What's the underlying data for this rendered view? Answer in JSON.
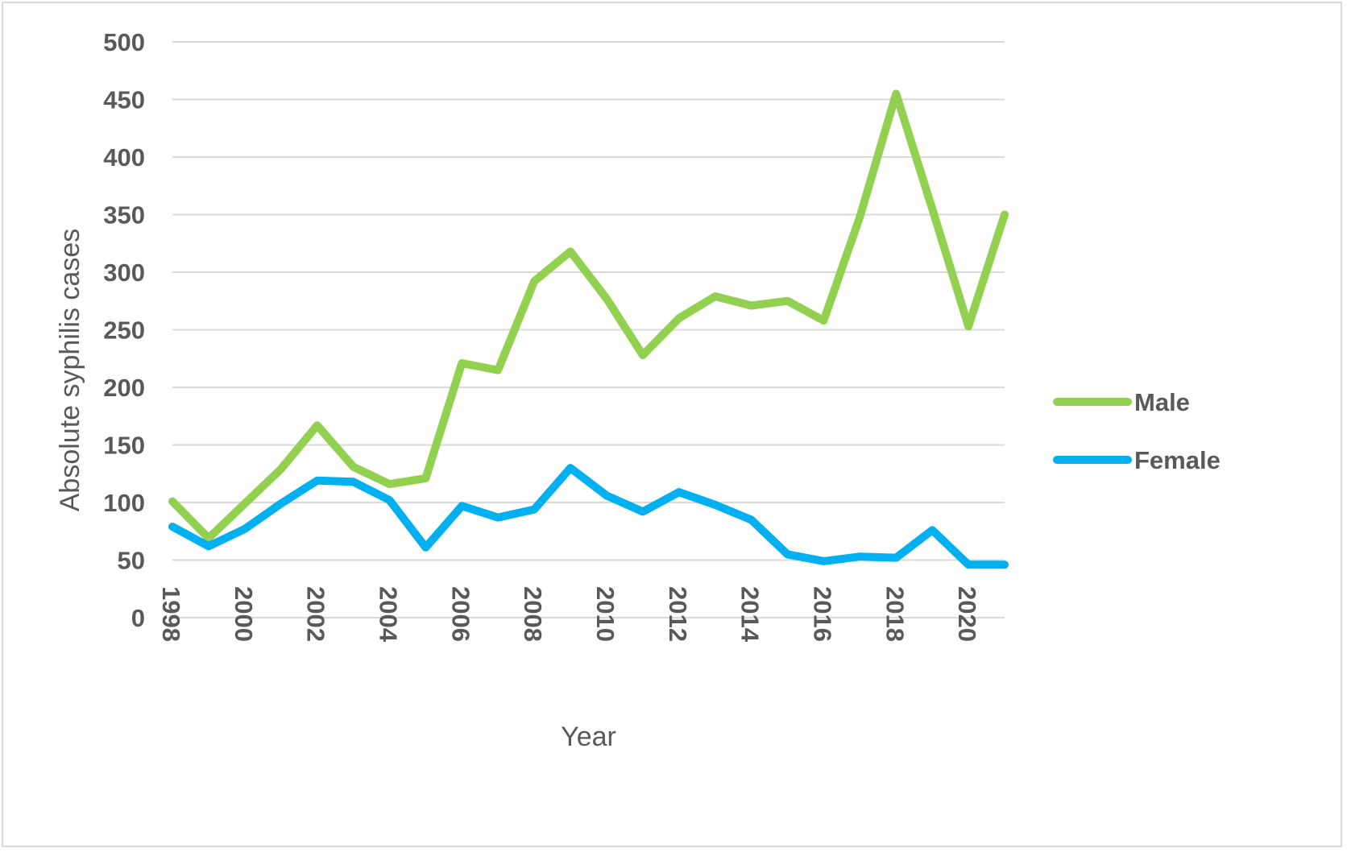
{
  "chart_data": {
    "type": "line",
    "title": "",
    "xlabel": "Year",
    "ylabel": "Absolute syphilis cases",
    "ylim": [
      0,
      500
    ],
    "ytick_step": 50,
    "x": [
      1998,
      1999,
      2000,
      2001,
      2002,
      2003,
      2004,
      2005,
      2006,
      2007,
      2008,
      2009,
      2010,
      2011,
      2012,
      2013,
      2014,
      2015,
      2016,
      2017,
      2018,
      2019,
      2020,
      2021
    ],
    "x_tick_labels": [
      "1998",
      "2000",
      "2002",
      "2004",
      "2006",
      "2008",
      "2010",
      "2012",
      "2014",
      "2016",
      "2018",
      "2020"
    ],
    "grid": true,
    "legend_position": "right",
    "series": [
      {
        "name": "Male",
        "color": "#92d050",
        "values": [
          101,
          69,
          99,
          129,
          167,
          131,
          116,
          121,
          221,
          215,
          292,
          318,
          277,
          228,
          260,
          279,
          271,
          275,
          258,
          348,
          455,
          355,
          253,
          350
        ]
      },
      {
        "name": "Female",
        "color": "#00b0f0",
        "values": [
          79,
          62,
          77,
          99,
          119,
          118,
          102,
          61,
          97,
          87,
          94,
          130,
          106,
          92,
          109,
          98,
          85,
          55,
          49,
          53,
          52,
          76,
          46,
          46
        ]
      }
    ]
  }
}
